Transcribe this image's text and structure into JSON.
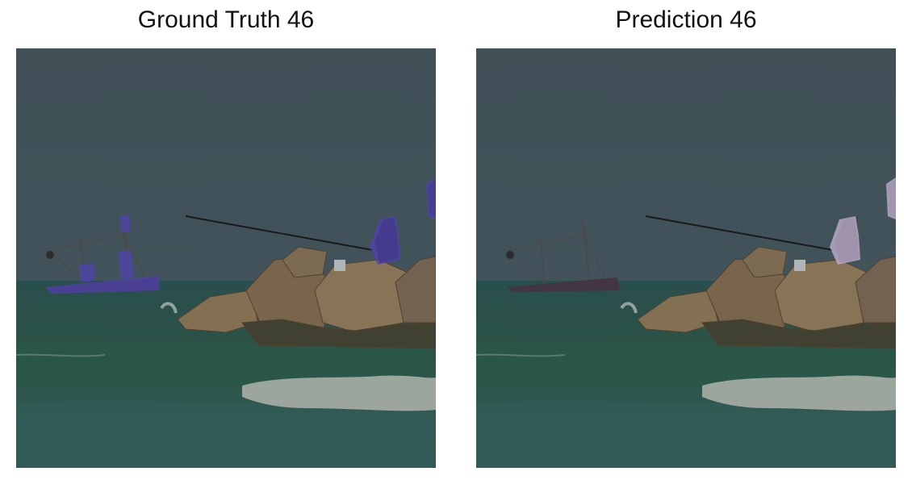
{
  "figure": {
    "panels": [
      {
        "title": "Ground Truth 46",
        "overlay_color": "#5a4cc8",
        "overlays": [
          "boat",
          "person-boat",
          "person-fisher",
          "person-edge"
        ]
      },
      {
        "title": "Prediction 46",
        "overlay_color": "#d8c8e8",
        "overlays": [
          "person-fisher",
          "person-edge"
        ]
      }
    ],
    "colors": {
      "sky": "#4c5f68",
      "sea_far": "#2f5a58",
      "sea_mid": "#335f52",
      "sea_near": "#3d6a66",
      "rocks": "#8c7b60",
      "foam": "#c8ccc4"
    }
  }
}
